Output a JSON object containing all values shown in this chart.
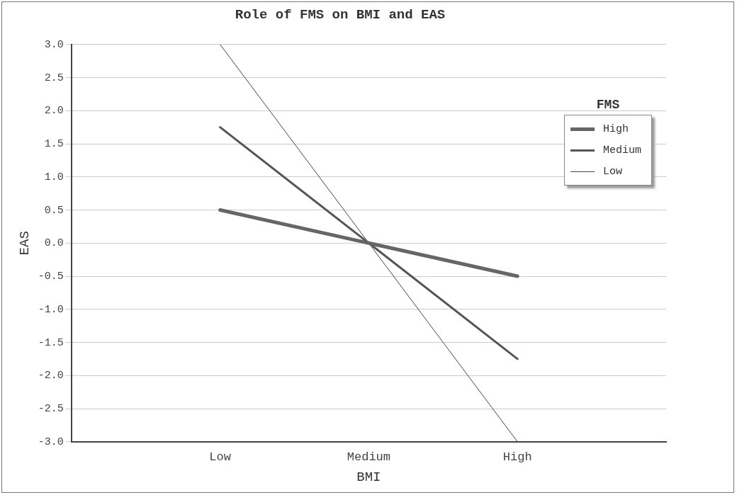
{
  "chart_data": {
    "type": "line",
    "title": "Role of FMS on BMI and EAS",
    "xlabel": "BMI",
    "ylabel": "EAS",
    "legend_title": "FMS",
    "legend": "top right",
    "grid": "y",
    "marker": "none",
    "line_style": "solid",
    "categories": [
      "Low",
      "Medium",
      "High"
    ],
    "ylim": [
      -3,
      3
    ],
    "yticks": [
      {
        "value": -3,
        "label": "-3.0"
      },
      {
        "value": -2.5,
        "label": "-2.5"
      },
      {
        "value": -2,
        "label": "-2.0"
      },
      {
        "value": -1.5,
        "label": "-1.5"
      },
      {
        "value": -1,
        "label": "-1.0"
      },
      {
        "value": -0.5,
        "label": "-0.5"
      },
      {
        "value": 0,
        "label": "0.0"
      },
      {
        "value": 0.5,
        "label": "0.5"
      },
      {
        "value": 1,
        "label": "1.0"
      },
      {
        "value": 1.5,
        "label": "1.5"
      },
      {
        "value": 2,
        "label": "2.0"
      },
      {
        "value": 2.5,
        "label": "2.5"
      },
      {
        "value": 3,
        "label": "3.0"
      }
    ],
    "series": [
      {
        "name": "High",
        "color": "#666666",
        "values": [
          0.5,
          0,
          -0.5
        ]
      },
      {
        "name": "Medium",
        "color": "#555555",
        "values": [
          1.75,
          0,
          -1.75
        ]
      },
      {
        "name": "Low",
        "color": "#444444",
        "values": [
          3,
          0,
          -3
        ]
      }
    ]
  }
}
